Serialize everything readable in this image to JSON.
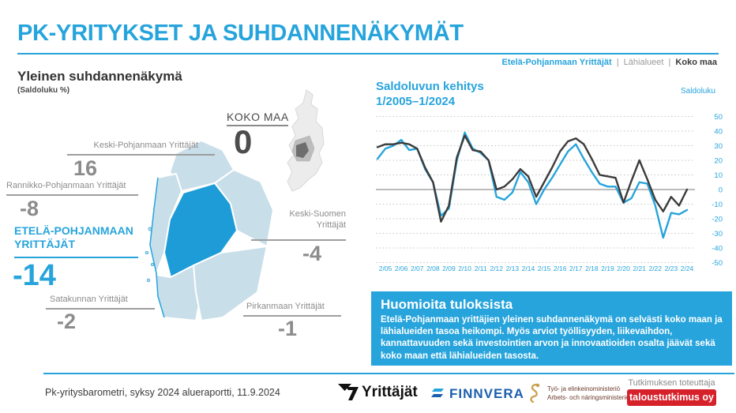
{
  "header": {
    "title": "PK-YRITYKSET JA SUHDANNENÄKYMÄT",
    "breadcrumb": {
      "region": "Etelä-Pohjanmaan Yrittäjät",
      "sep": "|",
      "nearby": "Lähialueet",
      "country": "Koko maa"
    }
  },
  "left_panel": {
    "title": "Yleinen suhdannenäkymä",
    "subtitle": "(Saldoluku %)",
    "koko_maa": {
      "label": "KOKO MAA",
      "value": "0"
    },
    "regions": [
      {
        "name": "Keski-Pohjanmaan Yrittäjät",
        "value": "16"
      },
      {
        "name": "Rannikko-Pohjanmaan Yrittäjät",
        "value": "-8"
      },
      {
        "name": "ETELÄ-POHJANMAAN YRITTÄJÄT",
        "value": "-14",
        "highlight": true
      },
      {
        "name": "Satakunnan Yrittäjät",
        "value": "-2"
      },
      {
        "name": "Keski-Suomen Yrittäjät",
        "value": "-4"
      },
      {
        "name": "Pirkanmaan Yrittäjät",
        "value": "-1"
      }
    ]
  },
  "chart": {
    "title_line1": "Saldoluvun kehitys",
    "title_line2": "1/2005–1/2024",
    "y_axis_label": "Saldoluku"
  },
  "chart_data": {
    "type": "line",
    "title": "Saldoluvun kehitys 1/2005–1/2024",
    "ylabel": "Saldoluku",
    "ylim": [
      -50,
      50
    ],
    "y_ticks": [
      50,
      40,
      30,
      20,
      10,
      0,
      -10,
      -20,
      -30,
      -40,
      -50
    ],
    "grid": "dotted-horizontal",
    "legend_position": "none",
    "x": [
      "1/05",
      "2/05",
      "1/06",
      "2/06",
      "1/07",
      "2/07",
      "1/08",
      "2/08",
      "1/09",
      "2/09",
      "1/10",
      "2/10",
      "1/11",
      "2/11",
      "1/12",
      "2/12",
      "1/13",
      "2/13",
      "1/14",
      "2/14",
      "1/15",
      "2/15",
      "1/16",
      "2/16",
      "1/17",
      "2/17",
      "1/18",
      "2/18",
      "1/19",
      "2/19",
      "1/20",
      "2/20",
      "1/21",
      "2/21",
      "1/22",
      "2/22",
      "1/23",
      "2/23",
      "1/24",
      "2/24"
    ],
    "x_tick_labels": [
      "2/05",
      "2/06",
      "2/07",
      "2/08",
      "2/09",
      "2/10",
      "2/11",
      "2/12",
      "2/13",
      "2/14",
      "2/15",
      "2/16",
      "2/17",
      "2/18",
      "2/19",
      "2/20",
      "2/21",
      "2/22",
      "2/23",
      "2/24"
    ],
    "series": [
      {
        "name": "Etelä-Pohjanmaan Yrittäjät",
        "color": "#27A4DC",
        "values": [
          21,
          28,
          30,
          34,
          27,
          28,
          14,
          5,
          -18,
          -13,
          20,
          39,
          28,
          25,
          20,
          -5,
          -7,
          -2,
          12,
          5,
          -10,
          0,
          8,
          17,
          26,
          31,
          21,
          12,
          4,
          2,
          2,
          -9,
          -6,
          5,
          4,
          -11,
          -33,
          -16,
          -17,
          -14
        ]
      },
      {
        "name": "Koko maa",
        "color": "#3B3B3B",
        "values": [
          29,
          31,
          31,
          32,
          31,
          28,
          15,
          5,
          -22,
          -11,
          22,
          37,
          27,
          26,
          20,
          0,
          2,
          7,
          14,
          9,
          -5,
          5,
          15,
          26,
          33,
          35,
          31,
          21,
          10,
          9,
          8,
          -9,
          6,
          20,
          7,
          -7,
          -15,
          -5,
          -11,
          0
        ]
      }
    ]
  },
  "notes_box": {
    "heading": "Huomioita tuloksista",
    "body": "Etelä-Pohjanmaan yrittäjien yleinen suhdannenäkymä on selvästi koko maan ja lähialueiden tasoa heikompi. Myös arviot työllisyyden, liikevaihdon, kannattavuuden sekä investointien arvon ja innovaatioiden osalta jäävät sekä koko maan että lähialueiden tasosta."
  },
  "footer": {
    "caption": "Pk-yritysbarometri, syksy 2024 alueraportti, 11.9.2024",
    "logos": {
      "yrittajat": "Yrittäjät",
      "finnvera": "FINNVERA",
      "ministry_fi": "Työ- ja elinkeinoministeriö",
      "ministry_sv": "Arbets- och näringsministeriet"
    },
    "research_label": "Tutkimuksen toteuttaja",
    "research_company": "taloustutkimus oy"
  },
  "colors": {
    "accent": "#27A4DC",
    "map_highlight": "#1E9CD7",
    "map_light": "#C8DEE9",
    "line_koko_maa": "#3B3B3B",
    "line_region": "#27A4DC",
    "gray_text": "#8C8C8C",
    "dark_value": "#4D4D4D",
    "notes_bg": "#27A4DC",
    "research_red": "#D6202A"
  }
}
